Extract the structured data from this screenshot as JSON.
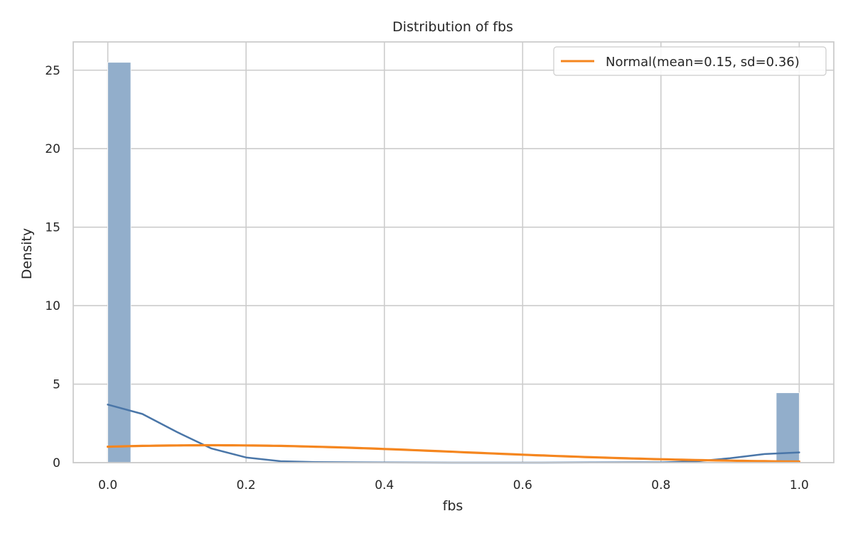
{
  "chart_data": {
    "type": "histogram",
    "title": "Distribution of fbs",
    "xlabel": "fbs",
    "ylabel": "Density",
    "xlim": [
      -0.05,
      1.05
    ],
    "ylim": [
      0,
      26.8
    ],
    "xticks": [
      0.0,
      0.2,
      0.4,
      0.6,
      0.8,
      1.0
    ],
    "xtick_labels": [
      "0.0",
      "0.2",
      "0.4",
      "0.6",
      "0.8",
      "1.0"
    ],
    "yticks": [
      0,
      5,
      10,
      15,
      20,
      25
    ],
    "ytick_labels": [
      "0",
      "5",
      "10",
      "15",
      "20",
      "25"
    ],
    "grid": true,
    "legend_position": "top-right",
    "bars": [
      {
        "x0": 0.0,
        "x1": 0.0333,
        "density": 25.5
      },
      {
        "x0": 0.9667,
        "x1": 1.0,
        "density": 4.45
      }
    ],
    "kde": {
      "x": [
        0.0,
        0.05,
        0.1,
        0.15,
        0.2,
        0.25,
        0.3,
        0.4,
        0.5,
        0.6,
        0.7,
        0.8,
        0.85,
        0.9,
        0.95,
        1.0
      ],
      "y": [
        3.7,
        3.1,
        1.95,
        0.9,
        0.33,
        0.09,
        0.03,
        0.01,
        0.0,
        0.0,
        0.01,
        0.02,
        0.08,
        0.28,
        0.55,
        0.65
      ]
    },
    "normal_fit": {
      "name": "Normal(mean=0.15, sd=0.36)",
      "mean": 0.15,
      "sd": 0.36
    },
    "colors": {
      "bars": "#92aecb",
      "kde": "#4a76a8",
      "normal": "#f5861f",
      "grid": "#cccccc",
      "spine": "#cccccc"
    }
  }
}
